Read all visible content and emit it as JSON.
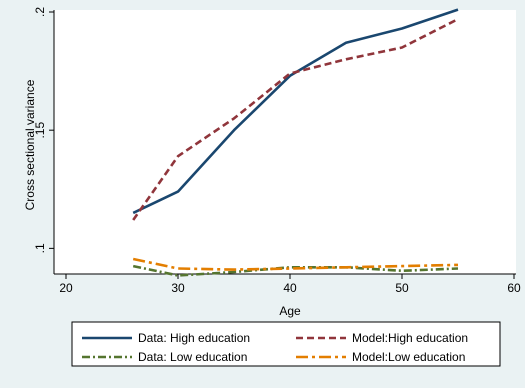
{
  "chart_data": {
    "type": "line",
    "title": "",
    "xlabel": "Age",
    "ylabel": "Cross sectional variance",
    "xlim": [
      20,
      60
    ],
    "ylim": [
      0.09,
      0.2
    ],
    "x_ticks": [
      20,
      30,
      40,
      50,
      60
    ],
    "x_tick_labels": [
      "20",
      "30",
      "40",
      "50",
      "60"
    ],
    "y_ticks": [
      0.1,
      0.15,
      0.2
    ],
    "y_tick_labels": [
      ".1",
      ".15",
      ".2"
    ],
    "grid": false,
    "legend_position": "bottom",
    "series": [
      {
        "name": "Data: High education",
        "color": "#1a476f",
        "dash": "solid",
        "x": [
          26,
          30,
          35,
          40,
          45,
          50,
          55
        ],
        "y": [
          0.115,
          0.124,
          0.15,
          0.173,
          0.187,
          0.193,
          0.201
        ]
      },
      {
        "name": "Model:High education",
        "color": "#90353b",
        "dash": "dash",
        "x": [
          26,
          30,
          35,
          40,
          45,
          50,
          55
        ],
        "y": [
          0.112,
          0.139,
          0.155,
          0.174,
          0.18,
          0.185,
          0.197
        ]
      },
      {
        "name": "Data: Low education",
        "color": "#55752f",
        "dash": "dash-dot",
        "x": [
          26,
          30,
          35,
          40,
          45,
          50,
          55
        ],
        "y": [
          0.0925,
          0.0885,
          0.09,
          0.092,
          0.092,
          0.0905,
          0.0915
        ]
      },
      {
        "name": "Model:Low education",
        "color": "#e37e00",
        "dash": "long-dash-dot",
        "x": [
          26,
          30,
          35,
          40,
          45,
          50,
          55
        ],
        "y": [
          0.0955,
          0.0915,
          0.091,
          0.0915,
          0.092,
          0.0925,
          0.093
        ]
      }
    ]
  }
}
